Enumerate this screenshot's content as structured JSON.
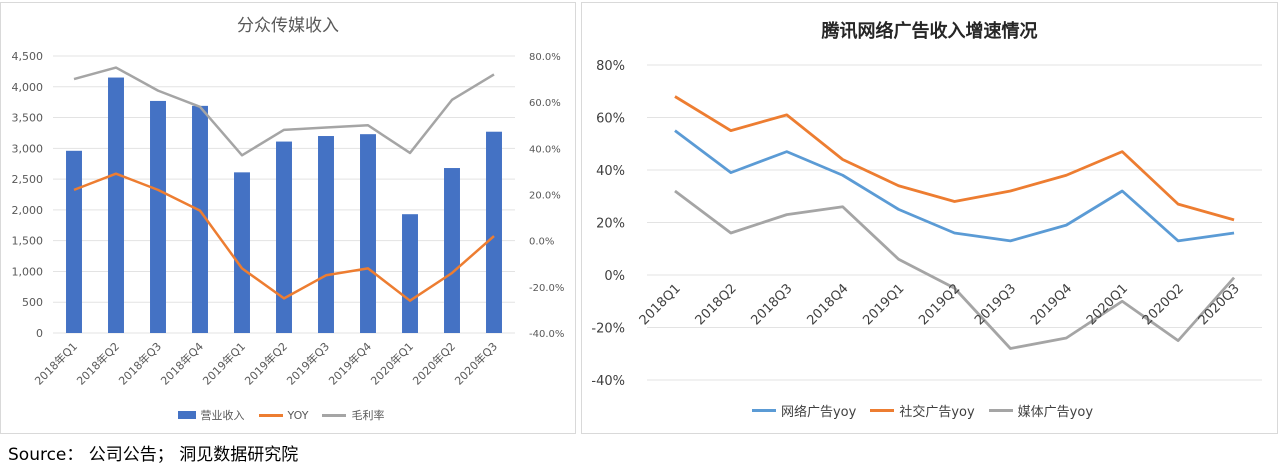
{
  "source_text": "Source： 公司公告； 洞见数据研究院",
  "colors": {
    "blue_bar": "#4472C4",
    "orange": "#ED7D31",
    "gray": "#A5A5A5",
    "line_blue": "#5B9BD5"
  },
  "chart_data": [
    {
      "type": "bar",
      "title": "分众传媒收入",
      "categories": [
        "2018年Q1",
        "2018年Q2",
        "2018年Q3",
        "2018年Q4",
        "2019年Q1",
        "2019年Q2",
        "2019年Q3",
        "2019年Q4",
        "2020年Q1",
        "2020年Q2",
        "2020年Q3"
      ],
      "series": [
        {
          "name": "营业收入",
          "kind": "bar",
          "axis": "left",
          "values": [
            2960,
            4150,
            3770,
            3690,
            2610,
            3110,
            3200,
            3230,
            1930,
            2680,
            3270
          ]
        },
        {
          "name": "YOY",
          "kind": "line",
          "axis": "right",
          "values": [
            22,
            29,
            22,
            13,
            -12,
            -25,
            -15,
            -12,
            -26,
            -14,
            2
          ]
        },
        {
          "name": "毛利率",
          "kind": "line",
          "axis": "right",
          "values": [
            70,
            75,
            65,
            58,
            37,
            48,
            49,
            50,
            38,
            61,
            72
          ]
        }
      ],
      "left_axis": {
        "ylim": [
          0,
          4500
        ],
        "ticks": [
          "0",
          "500",
          "1,000",
          "1,500",
          "2,000",
          "2,500",
          "3,000",
          "3,500",
          "4,000",
          "4,500"
        ]
      },
      "right_axis": {
        "ylim": [
          -40,
          80
        ],
        "ticks": [
          "-40.0%",
          "-20.0%",
          "0.0%",
          "20.0%",
          "40.0%",
          "60.0%",
          "80.0%"
        ]
      },
      "legend": [
        "营业收入",
        "YOY",
        "毛利率"
      ],
      "legend_position": "bottom"
    },
    {
      "type": "line",
      "title": "腾讯网络广告收入增速情况",
      "categories": [
        "2018Q1",
        "2018Q2",
        "2018Q3",
        "2018Q4",
        "2019Q1",
        "2019Q2",
        "2019Q3",
        "2019Q4",
        "2020Q1",
        "2020Q2",
        "2020Q3"
      ],
      "series": [
        {
          "name": "网络广告yoy",
          "values": [
            55,
            39,
            47,
            38,
            25,
            16,
            13,
            19,
            32,
            13,
            16
          ]
        },
        {
          "name": "社交广告yoy",
          "values": [
            68,
            55,
            61,
            44,
            34,
            28,
            32,
            38,
            47,
            27,
            21
          ]
        },
        {
          "name": "媒体广告yoy",
          "values": [
            32,
            16,
            23,
            26,
            6,
            -5,
            -28,
            -24,
            -10,
            -25,
            -1
          ]
        }
      ],
      "ylim": [
        -40,
        80
      ],
      "ticks": [
        "-40%",
        "-20%",
        "0%",
        "20%",
        "40%",
        "60%",
        "80%"
      ],
      "legend": [
        "网络广告yoy",
        "社交广告yoy",
        "媒体广告yoy"
      ],
      "legend_position": "bottom"
    }
  ]
}
